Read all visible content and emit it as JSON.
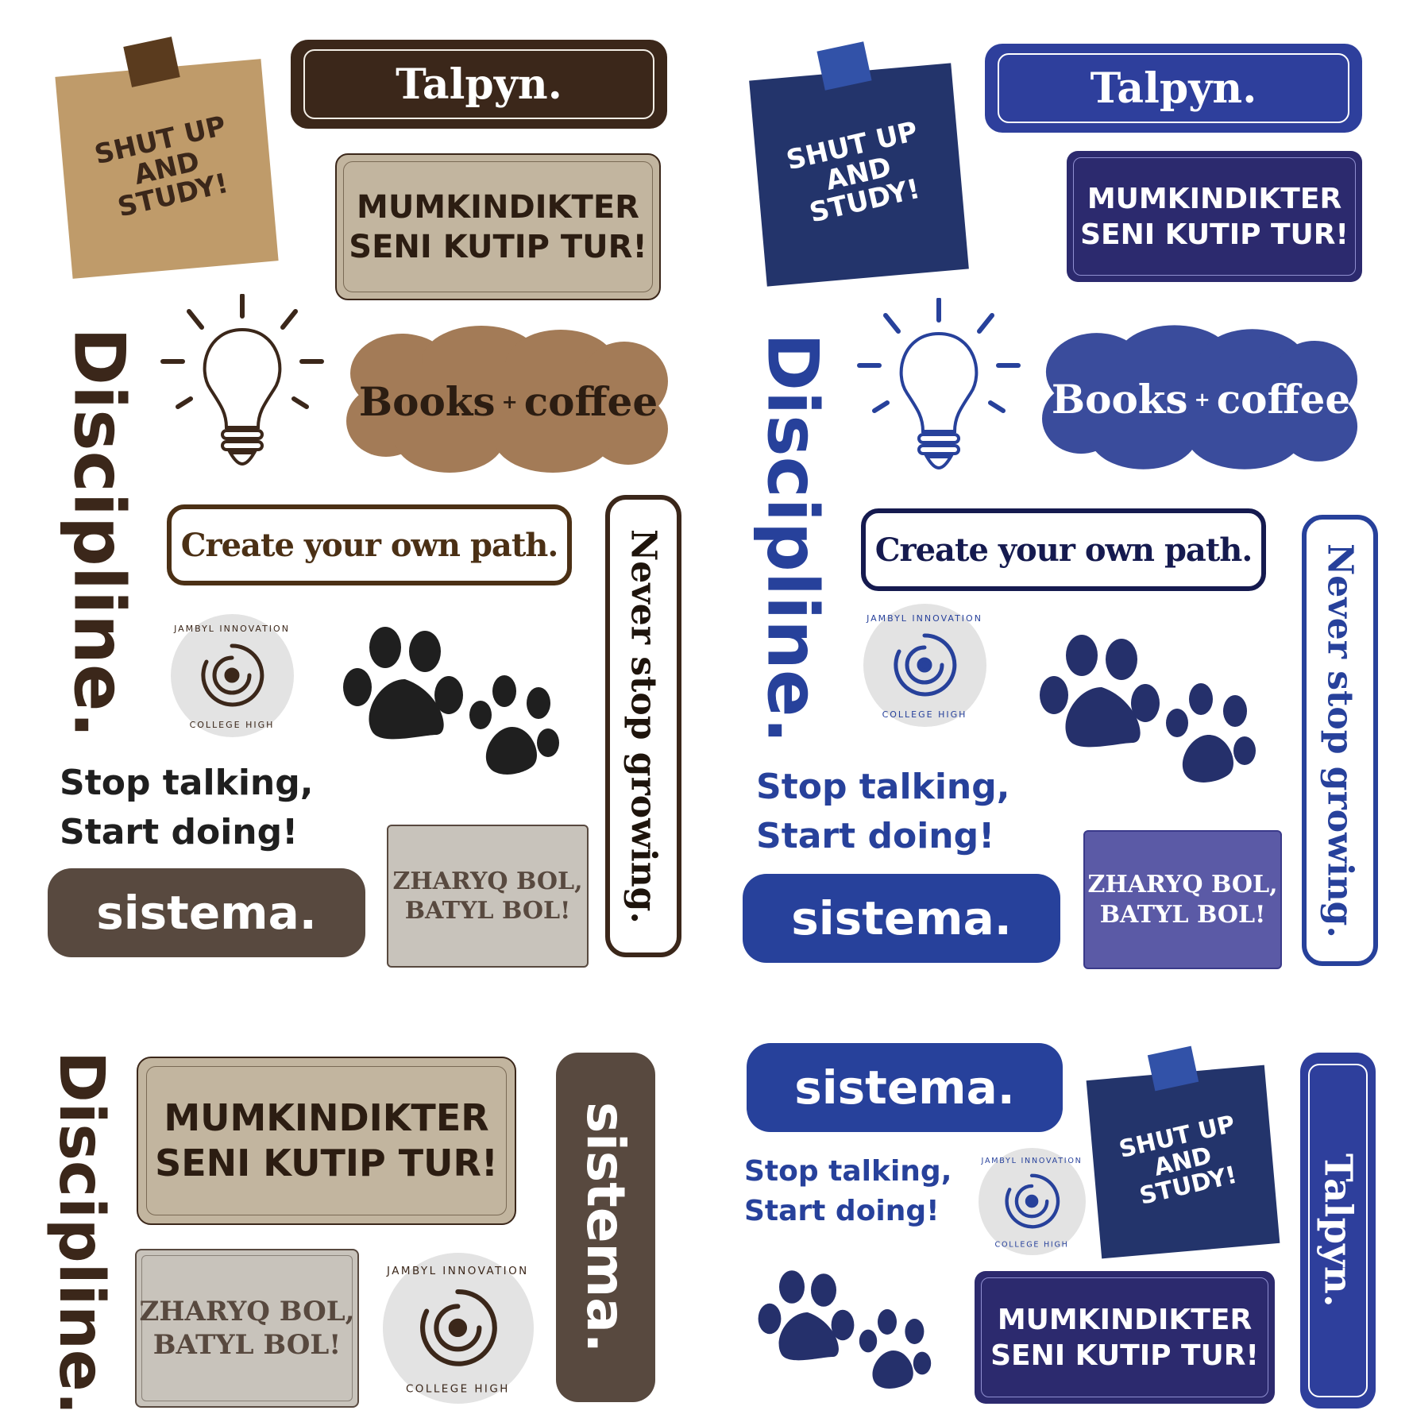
{
  "colors": {
    "brown_dark": "#3b271a",
    "brown_mid": "#58493f",
    "kraft": "#bf9b6a",
    "beige": "#c2b59f",
    "greige": "#c8c3bb",
    "coffee": "#a37b57",
    "navy": "#23346b",
    "royal": "#27419b",
    "indigo": "#2c2a6e",
    "periwinkle": "#5b5aa6",
    "cloud_blue": "#3a4c9c",
    "light_gray": "#e3e3e3"
  },
  "sticker_texts": {
    "talpyn": "Talpyn.",
    "shut_up": "SHUT UP\nAND\nSTUDY!",
    "mumkindikter": "MUMKINDIKTER\nSENI KUTIP TUR!",
    "books": "Books",
    "plus": "+",
    "coffee": "coffee",
    "discipline": "Discipline.",
    "create_path": "Create your own path.",
    "never_stop": "Never stop growing.",
    "stop_talking": "Stop talking,\nStart doing!",
    "sistema": "sistema.",
    "zharyq": "ZHARYQ BOL,\nBATYL BOL!",
    "seal": "JAMBYL INNOVATION HIGH COLLEGE"
  },
  "icons": [
    "lightbulb-icon",
    "paw-print-icon",
    "seal-swirl-icon",
    "tape-icon"
  ]
}
